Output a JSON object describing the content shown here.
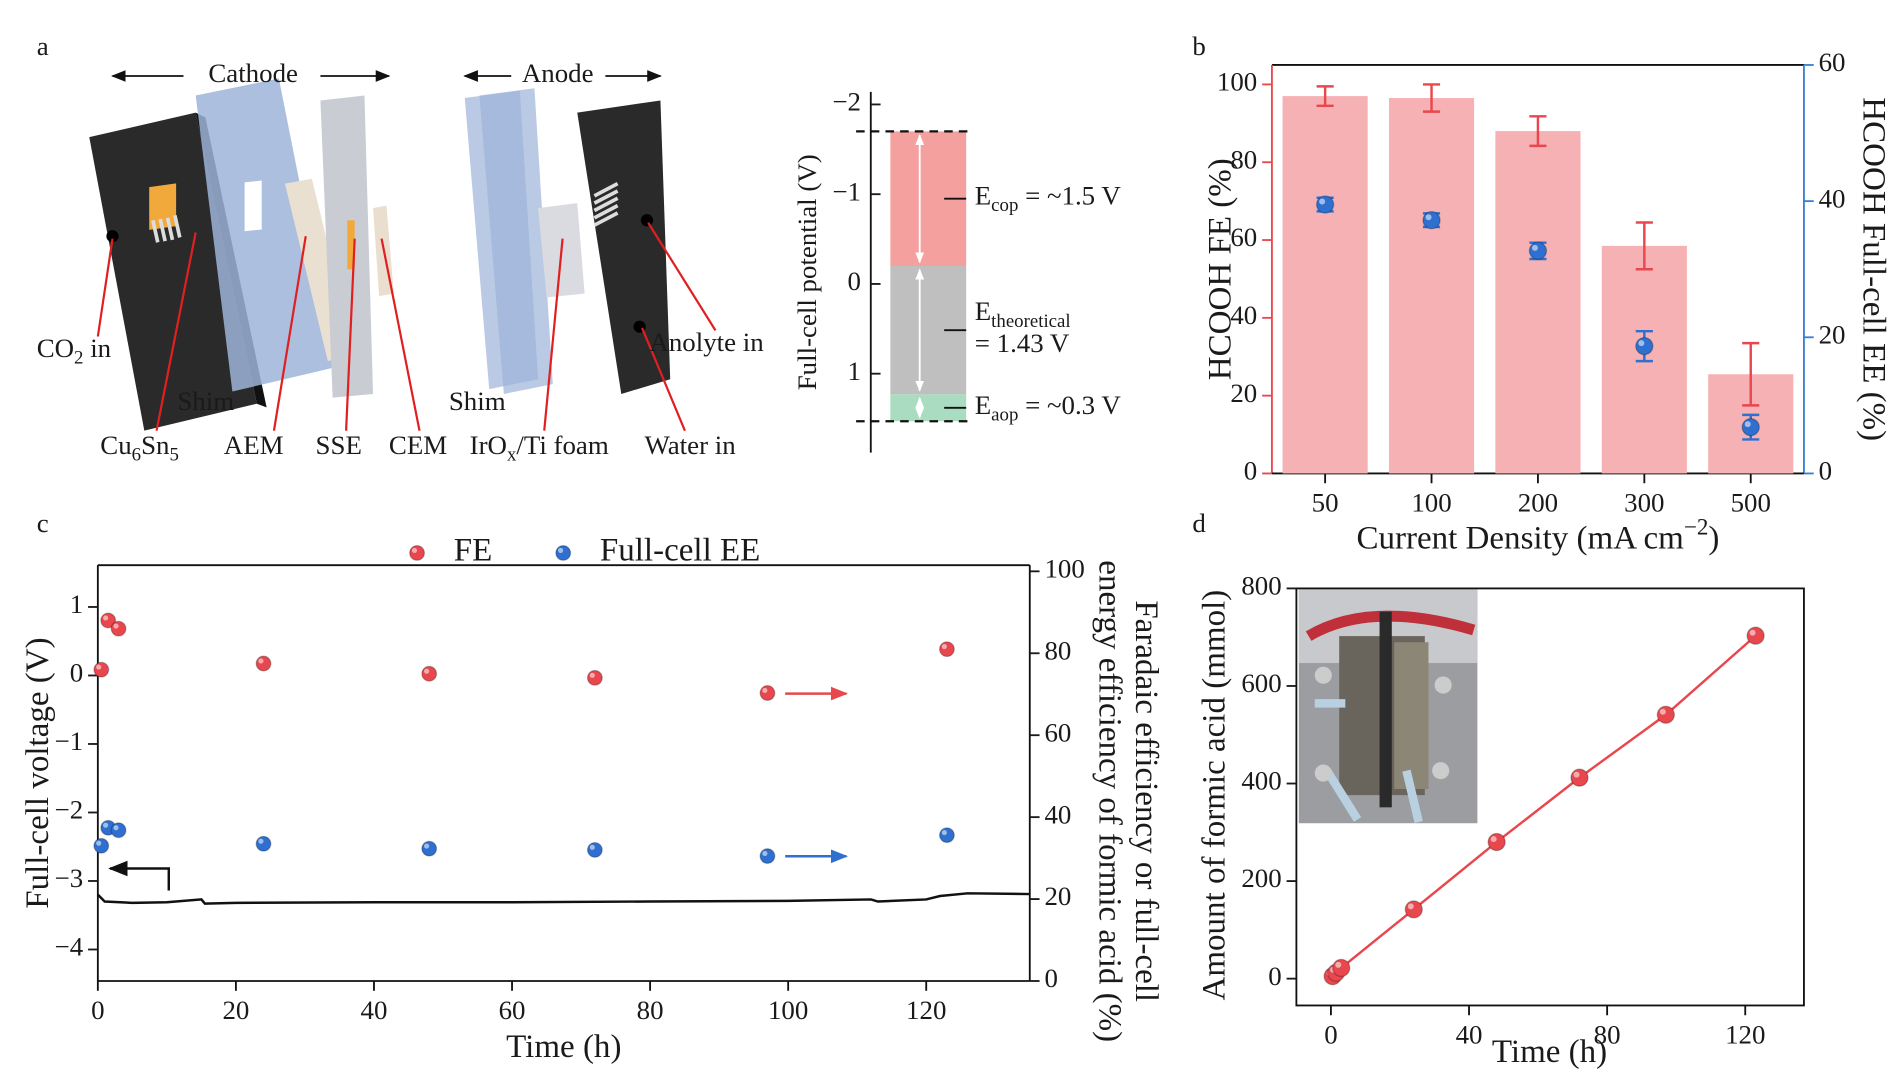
{
  "panel_labels": [
    "a",
    "b",
    "c",
    "d"
  ],
  "diagram": {
    "cathode": "Cathode",
    "anode": "Anode",
    "labels": [
      {
        "parts": [
          "CO",
          "2",
          " in"
        ],
        "shift": "sub"
      },
      "Shim",
      {
        "parts": [
          "Cu",
          "6",
          "Sn",
          "5"
        ],
        "shift": "sub"
      },
      "AEM",
      "SSE",
      "CEM",
      "Shim",
      {
        "parts": [
          "IrO",
          "x",
          "/Ti foam"
        ],
        "shift": "sub"
      },
      "Water in",
      "Anolyte in"
    ]
  },
  "chart_data": [
    {
      "type": "range-bar",
      "y_label": "Full-cell potential (V)",
      "ylim": [
        1.88,
        -2.14
      ],
      "yticks": [
        {
          "value": -2,
          "label": "−2"
        },
        {
          "value": -1,
          "label": "−1"
        },
        0,
        1
      ],
      "dashed_levels": [
        -1.7,
        1.53
      ],
      "segments": [
        {
          "range": [
            -1.7,
            -0.2
          ],
          "color": "#f4a09f",
          "label": [
            {
              "parts": [
                "E",
                "cop",
                " = ~1.5 V"
              ],
              "shift": "sub"
            }
          ]
        },
        {
          "range": [
            -0.2,
            1.23
          ],
          "color": "#bfbfbf",
          "label": [
            {
              "parts": [
                "E",
                "theoretical"
              ],
              "shift": "sub"
            },
            "= 1.43 V"
          ]
        },
        {
          "range": [
            1.23,
            1.53
          ],
          "color": "#a9dcc0",
          "label": [
            {
              "parts": [
                "E",
                "aop",
                " = ~0.3 V"
              ],
              "shift": "sub"
            }
          ]
        }
      ]
    },
    {
      "type": "bar",
      "x_label": {
        "parts": [
          "Current Density (mA cm",
          "−2",
          ")"
        ],
        "shift": "sup"
      },
      "y_label": "HCOOH FE (%)",
      "y2_label": "HCOOH Full-cell EE (%)",
      "y_color": "#e8474e",
      "y2_color": "#3a7fd5",
      "categories": [
        "50",
        "100",
        "200",
        "300",
        "500"
      ],
      "ylim": [
        0,
        105
      ],
      "yticks": [
        0,
        20,
        40,
        60,
        80,
        100
      ],
      "y2lim": [
        0,
        60
      ],
      "y2ticks": [
        0,
        20,
        40,
        60
      ],
      "series": [
        {
          "type": "bar",
          "color": "#f5b1b3",
          "error_color": "#e8474e",
          "values": [
            97,
            96.5,
            88,
            58.5,
            25.5
          ],
          "errors": [
            2.5,
            3.5,
            3.8,
            6,
            8
          ]
        },
        {
          "type": "scatter",
          "axis": "y2",
          "color": "#2e6fd0",
          "values": [
            39.5,
            37.2,
            32.7,
            18.7,
            6.8
          ],
          "errors": [
            1,
            1,
            1.2,
            2.2,
            1.8
          ]
        }
      ]
    },
    {
      "type": "scatter",
      "x_label": "Time (h)",
      "y_label": "Full-cell voltage (V)",
      "y2_label": [
        "energy efficiency of formic acid (%)",
        "Faradaic efficiency or full-cell"
      ],
      "xlim": [
        0,
        135
      ],
      "xticks": [
        0,
        20,
        40,
        60,
        80,
        100,
        120
      ],
      "ylim": [
        -4.46,
        1.61
      ],
      "yticks": [
        {
          "value": -4,
          "label": "−4"
        },
        {
          "value": -3,
          "label": "−3"
        },
        {
          "value": -2,
          "label": "−2"
        },
        {
          "value": -1,
          "label": "−1"
        },
        0,
        1
      ],
      "y2lim": [
        0,
        101.5
      ],
      "y2ticks": [
        0,
        20,
        40,
        60,
        80,
        100
      ],
      "series": [
        {
          "type": "line",
          "color": "#111111",
          "x": [
            0,
            1,
            5,
            10,
            15,
            15.5,
            20,
            40,
            60,
            80,
            100,
            112,
            113,
            120,
            122,
            126,
            135
          ],
          "values": [
            -3.2,
            -3.3,
            -3.32,
            -3.31,
            -3.27,
            -3.33,
            -3.32,
            -3.31,
            -3.31,
            -3.3,
            -3.29,
            -3.27,
            -3.3,
            -3.27,
            -3.22,
            -3.18,
            -3.19
          ]
        },
        {
          "type": "scatter",
          "name": "FE",
          "axis": "y2",
          "color": "#e8474e",
          "x": [
            0.5,
            1.5,
            3,
            24,
            48,
            72,
            97,
            123
          ],
          "values": [
            76,
            88,
            86,
            77.5,
            75,
            74,
            70.3,
            81
          ]
        },
        {
          "type": "scatter",
          "name": "Full-cell EE",
          "axis": "y2",
          "color": "#2e6fd0",
          "x": [
            0.5,
            1.5,
            3,
            24,
            48,
            72,
            97,
            123
          ],
          "values": [
            33,
            37.4,
            36.8,
            33.5,
            32.3,
            32,
            30.5,
            35.6
          ]
        }
      ]
    },
    {
      "type": "line",
      "x_label": "Time (h)",
      "y_label": "Amount of formic acid (mmol)",
      "xlim": [
        -10,
        137
      ],
      "xticks": [
        0,
        40,
        80,
        120
      ],
      "ylim": [
        -55,
        800
      ],
      "yticks": [
        0,
        200,
        400,
        600,
        800
      ],
      "series": [
        {
          "type": "line",
          "color": "#e8474e",
          "x": [
            0.5,
            1.5,
            3,
            24,
            48,
            72,
            97,
            123
          ],
          "values": [
            5,
            12,
            22,
            142,
            280,
            412,
            541,
            703
          ]
        }
      ]
    }
  ]
}
